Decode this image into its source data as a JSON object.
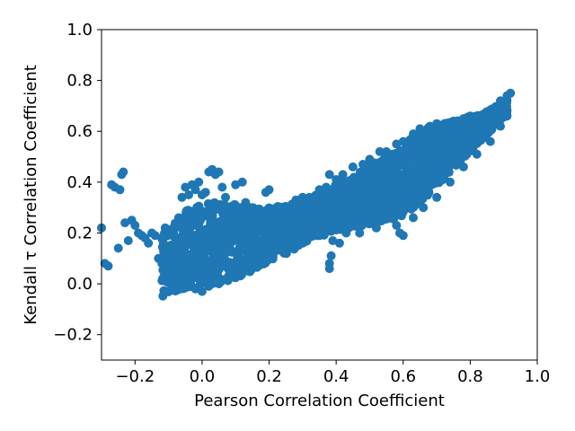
{
  "chart_data": {
    "type": "scatter",
    "title": "",
    "xlabel": "Pearson Correlation Coefficient",
    "ylabel": "Kendall τ Correlation Coefficient",
    "xlim": [
      -0.3,
      1.0
    ],
    "ylim": [
      -0.3,
      1.0
    ],
    "xticks": [
      {
        "value": -0.2,
        "label": "−0.2"
      },
      {
        "value": 0.0,
        "label": "0.0"
      },
      {
        "value": 0.2,
        "label": "0.2"
      },
      {
        "value": 0.4,
        "label": "0.4"
      },
      {
        "value": 0.6,
        "label": "0.6"
      },
      {
        "value": 0.8,
        "label": "0.8"
      },
      {
        "value": 1.0,
        "label": "1.0"
      }
    ],
    "yticks": [
      {
        "value": -0.2,
        "label": "−0.2"
      },
      {
        "value": 0.0,
        "label": "0.0"
      },
      {
        "value": 0.2,
        "label": "0.2"
      },
      {
        "value": 0.4,
        "label": "0.4"
      },
      {
        "value": 0.6,
        "label": "0.6"
      },
      {
        "value": 0.8,
        "label": "0.8"
      },
      {
        "value": 1.0,
        "label": "1.0"
      }
    ],
    "grid": false,
    "color": "#1f77b4",
    "series": [
      {
        "points": [
          [
            -0.3,
            0.22
          ],
          [
            -0.29,
            0.08
          ],
          [
            -0.28,
            0.07
          ],
          [
            -0.27,
            0.39
          ],
          [
            -0.26,
            0.38
          ],
          [
            -0.25,
            0.14
          ],
          [
            -0.245,
            0.37
          ],
          [
            -0.24,
            0.43
          ],
          [
            -0.235,
            0.44
          ],
          [
            -0.23,
            0.24
          ],
          [
            -0.22,
            0.17
          ],
          [
            -0.21,
            0.25
          ],
          [
            -0.2,
            0.23
          ],
          [
            -0.19,
            0.2
          ],
          [
            -0.18,
            0.19
          ],
          [
            -0.17,
            0.18
          ],
          [
            -0.16,
            0.16
          ],
          [
            -0.15,
            0.2
          ],
          [
            -0.14,
            0.19
          ],
          [
            -0.13,
            0.1
          ],
          [
            -0.12,
            0.08
          ],
          [
            -0.11,
            0.22
          ],
          [
            -0.1,
            0.12
          ],
          [
            -0.09,
            0.06
          ],
          [
            -0.08,
            0.03
          ],
          [
            -0.07,
            0.26
          ],
          [
            -0.06,
            0.34
          ],
          [
            -0.05,
            0.38
          ],
          [
            -0.04,
            0.35
          ],
          [
            -0.03,
            0.39
          ],
          [
            -0.02,
            0.37
          ],
          [
            -0.01,
            0.4
          ],
          [
            0.0,
            0.35
          ],
          [
            0.01,
            0.36
          ],
          [
            0.02,
            0.44
          ],
          [
            0.03,
            0.45
          ],
          [
            0.04,
            0.43
          ],
          [
            0.05,
            0.44
          ],
          [
            0.06,
            0.38
          ],
          [
            0.07,
            0.34
          ],
          [
            0.08,
            0.3
          ],
          [
            0.09,
            0.26
          ],
          [
            0.1,
            0.39
          ],
          [
            0.11,
            0.28
          ],
          [
            0.12,
            0.4
          ],
          [
            0.13,
            0.32
          ],
          [
            0.15,
            0.3
          ],
          [
            0.17,
            0.28
          ],
          [
            0.19,
            0.36
          ],
          [
            0.2,
            0.37
          ],
          [
            0.21,
            0.29
          ],
          [
            0.23,
            0.29
          ],
          [
            0.25,
            0.3
          ],
          [
            0.28,
            0.33
          ],
          [
            0.3,
            0.34
          ],
          [
            0.32,
            0.34
          ],
          [
            0.35,
            0.37
          ],
          [
            0.37,
            0.38
          ],
          [
            0.38,
            0.43
          ],
          [
            0.4,
            0.41
          ],
          [
            0.42,
            0.43
          ],
          [
            0.45,
            0.46
          ],
          [
            0.48,
            0.47
          ],
          [
            0.5,
            0.49
          ],
          [
            0.53,
            0.52
          ],
          [
            0.55,
            0.52
          ],
          [
            0.58,
            0.55
          ],
          [
            0.6,
            0.56
          ],
          [
            0.63,
            0.59
          ],
          [
            0.65,
            0.61
          ],
          [
            0.68,
            0.62
          ],
          [
            0.7,
            0.63
          ],
          [
            0.73,
            0.63
          ],
          [
            0.75,
            0.64
          ],
          [
            0.78,
            0.65
          ],
          [
            0.8,
            0.66
          ],
          [
            0.83,
            0.66
          ],
          [
            0.85,
            0.67
          ],
          [
            0.87,
            0.69
          ],
          [
            0.89,
            0.72
          ],
          [
            0.91,
            0.74
          ],
          [
            0.92,
            0.75
          ],
          [
            0.38,
            0.08
          ],
          [
            0.38,
            0.06
          ],
          [
            0.385,
            0.11
          ],
          [
            0.39,
            0.17
          ],
          [
            0.41,
            0.16
          ],
          [
            0.43,
            0.2
          ],
          [
            0.47,
            0.2
          ],
          [
            0.52,
            0.22
          ],
          [
            0.58,
            0.23
          ],
          [
            0.59,
            0.2
          ],
          [
            0.6,
            0.19
          ],
          [
            0.63,
            0.26
          ],
          [
            0.66,
            0.3
          ],
          [
            0.7,
            0.34
          ],
          [
            0.74,
            0.4
          ],
          [
            0.78,
            0.46
          ],
          [
            0.82,
            0.51
          ],
          [
            0.86,
            0.56
          ],
          [
            0.89,
            0.62
          ],
          [
            0.91,
            0.66
          ],
          [
            -0.05,
            0.0
          ],
          [
            -0.04,
            -0.01
          ],
          [
            -0.02,
            -0.02
          ],
          [
            0.0,
            -0.03
          ],
          [
            0.02,
            -0.01
          ],
          [
            0.05,
            0.0
          ],
          [
            0.08,
            0.02
          ],
          [
            0.12,
            0.04
          ],
          [
            0.16,
            0.07
          ],
          [
            0.2,
            0.1
          ],
          [
            0.25,
            0.13
          ],
          [
            0.3,
            0.16
          ],
          [
            0.35,
            0.19
          ]
        ],
        "bands": [
          [
            -0.12,
            -0.05,
            0.2
          ],
          [
            -0.08,
            -0.03,
            0.24
          ],
          [
            -0.04,
            -0.02,
            0.3
          ],
          [
            0.0,
            -0.01,
            0.32
          ],
          [
            0.04,
            0.0,
            0.32
          ],
          [
            0.08,
            0.01,
            0.32
          ],
          [
            0.12,
            0.03,
            0.31
          ],
          [
            0.16,
            0.06,
            0.3
          ],
          [
            0.2,
            0.09,
            0.3
          ],
          [
            0.24,
            0.11,
            0.31
          ],
          [
            0.28,
            0.14,
            0.32
          ],
          [
            0.32,
            0.17,
            0.34
          ],
          [
            0.36,
            0.19,
            0.36
          ],
          [
            0.4,
            0.2,
            0.39
          ],
          [
            0.44,
            0.22,
            0.42
          ],
          [
            0.48,
            0.23,
            0.45
          ],
          [
            0.52,
            0.24,
            0.48
          ],
          [
            0.56,
            0.25,
            0.51
          ],
          [
            0.6,
            0.27,
            0.55
          ],
          [
            0.64,
            0.31,
            0.59
          ],
          [
            0.68,
            0.35,
            0.62
          ],
          [
            0.72,
            0.41,
            0.63
          ],
          [
            0.76,
            0.47,
            0.64
          ],
          [
            0.8,
            0.52,
            0.66
          ],
          [
            0.84,
            0.57,
            0.67
          ],
          [
            0.88,
            0.63,
            0.7
          ],
          [
            0.91,
            0.67,
            0.73
          ]
        ]
      }
    ]
  }
}
